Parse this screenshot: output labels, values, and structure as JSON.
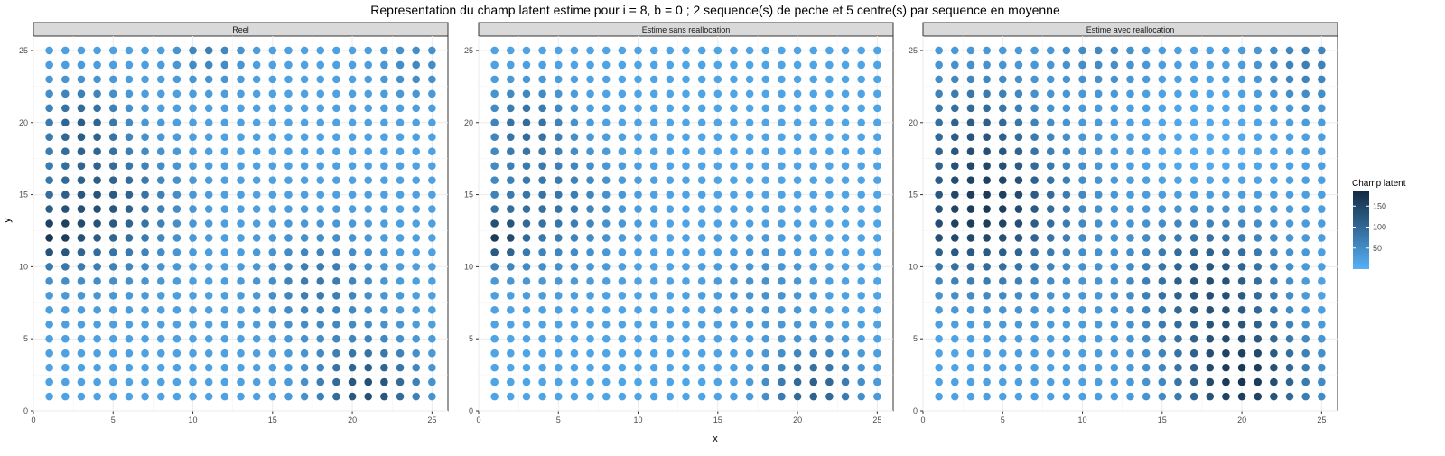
{
  "title": "Representation du champ latent estime pour i = 8, b = 0 ; 2 sequence(s) de peche et 5 centre(s) par sequence en moyenne",
  "chart_data": {
    "type": "scatter",
    "facet_layout": "1x3",
    "xlabel": "x",
    "ylabel": "y",
    "xlim": [
      0,
      26
    ],
    "ylim": [
      0,
      26
    ],
    "xticks": [
      0,
      5,
      10,
      15,
      20,
      25
    ],
    "yticks": [
      0,
      5,
      10,
      15,
      20,
      25
    ],
    "grid": true,
    "grid_size": 25,
    "panels": [
      {
        "name": "Reel"
      },
      {
        "name": "Estime sans reallocation"
      },
      {
        "name": "Estime avec reallocation"
      }
    ],
    "legend": {
      "title": "Champ latent",
      "placement": "right",
      "ticks": [
        50,
        100,
        150
      ],
      "min": 0,
      "max": 185,
      "color_low": "#56B1F7",
      "color_high": "#132B43"
    }
  }
}
